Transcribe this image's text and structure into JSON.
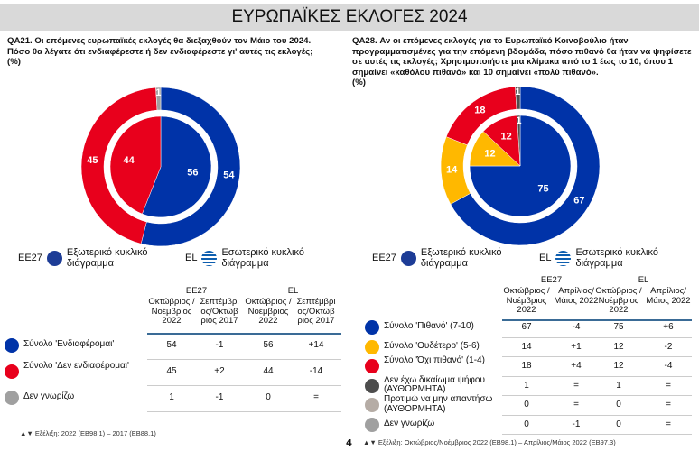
{
  "title": "ΕΥΡΩΠΑΪΚΕΣ ΕΚΛΟΓΕΣ 2024",
  "page_number": "4",
  "legend": {
    "ee27": "EE27",
    "ee27_text": "Εξωτερικό κυκλικό διάγραμμα",
    "el": "EL",
    "el_text": "Εσωτερικό κυκλικό διάγραμμα"
  },
  "left": {
    "question": "QA21. Οι επόμενες ευρωπαϊκές εκλογές θα διεξαχθούν τον Μάιο του 2024. Πόσο θα λέγατε ότι ενδιαφέρεστε ή δεν ενδιαφέρεστε γι' αυτές τις εκλογές;",
    "unit": "(%)",
    "headers": {
      "ee27": "EE27",
      "el": "EL",
      "c1": "Οκτώβριος /Νοέμβριος 2022",
      "c2": "Σεπτέμβρι ος/Οκτώβ ριος 2017"
    },
    "rows": [
      {
        "label": "Σύνολο 'Ενδιαφέρομαι'",
        "color": "#0033a8",
        "ee27": "54",
        "ee27_diff": "-1",
        "el": "56",
        "el_diff": "+14"
      },
      {
        "label": "Σύνολο 'Δεν ενδιαφέρομαι'",
        "color": "#e8001c",
        "ee27": "45",
        "ee27_diff": "+2",
        "el": "44",
        "el_diff": "-14"
      },
      {
        "label": "Δεν γνωρίζω",
        "color": "#a0a0a0",
        "ee27": "1",
        "ee27_diff": "-1",
        "el": "0",
        "el_diff": "="
      }
    ],
    "note": "▲▼ Εξέλιξη: 2022 (EB98.1) – 2017 (EB88.1)"
  },
  "right": {
    "question": "QA28. Αν οι επόμενες εκλογές για το Ευρωπαϊκό Κοινοβούλιο ήταν προγραμματισμένες για την επόμενη βδομάδα, πόσο πιθανό θα ήταν να ψηφίσετε σε αυτές τις εκλογές; Χρησιμοποιήστε μια κλίμακα από το 1 έως το 10, όπου 1 σημαίνει «καθόλου πιθανό» και 10 σημαίνει «πολύ πιθανό».",
    "unit": "(%)",
    "headers": {
      "ee27": "EE27",
      "el": "EL",
      "c1": "Οκτώβριος /Νοέμβριος 2022",
      "c2": "Απρίλιος/ Μάιος 2022"
    },
    "rows": [
      {
        "label": "Σύνολο 'Πιθανό' (7-10)",
        "color": "#0033a8",
        "ee27": "67",
        "ee27_diff": "-4",
        "el": "75",
        "el_diff": "+6"
      },
      {
        "label": "Σύνολο 'Ουδέτερο' (5-6)",
        "color": "#ffb800",
        "ee27": "14",
        "ee27_diff": "+1",
        "el": "12",
        "el_diff": "-2"
      },
      {
        "label": "Σύνολο 'Όχι πιθανό' (1-4)",
        "color": "#e8001c",
        "ee27": "18",
        "ee27_diff": "+4",
        "el": "12",
        "el_diff": "-4"
      },
      {
        "label": "Δεν έχω δικαίωμα ψήφου (ΑΥΘΟΡΜΗΤΑ)",
        "color": "#4d4d4d",
        "ee27": "1",
        "ee27_diff": "=",
        "el": "1",
        "el_diff": "="
      },
      {
        "label": "Προτιμώ να μην απαντήσω (ΑΥΘΟΡΜΗΤΑ)",
        "color": "#b5aca5",
        "ee27": "0",
        "ee27_diff": "=",
        "el": "0",
        "el_diff": "="
      },
      {
        "label": "Δεν γνωρίζω",
        "color": "#a0a0a0",
        "ee27": "0",
        "ee27_diff": "-1",
        "el": "0",
        "el_diff": "="
      }
    ],
    "note": "▲▼ Εξέλιξη: Οκτώβριος/Νοέμβριος 2022 (EB98.1) – Απρίλιος/Μάιος 2022 (EB97.3)"
  },
  "chart_data": [
    {
      "type": "pie",
      "title": "QA21",
      "series": [
        {
          "name": "EE27",
          "categories": [
            "Σύνολο 'Ενδιαφέρομαι'",
            "Σύνολο 'Δεν ενδιαφέρομαι'",
            "Δεν γνωρίζω"
          ],
          "values": [
            54,
            45,
            1
          ],
          "colors": [
            "#0033a8",
            "#e8001c",
            "#a0a0a0"
          ]
        },
        {
          "name": "EL",
          "categories": [
            "Σύνολο 'Ενδιαφέρομαι'",
            "Σύνολο 'Δεν ενδιαφέρομαι'"
          ],
          "values": [
            56,
            44
          ],
          "colors": [
            "#0033a8",
            "#e8001c"
          ]
        }
      ]
    },
    {
      "type": "pie",
      "title": "QA28",
      "series": [
        {
          "name": "EE27",
          "categories": [
            "Σύνολο 'Πιθανό' (7-10)",
            "Σύνολο 'Ουδέτερο' (5-6)",
            "Σύνολο 'Όχι πιθανό' (1-4)",
            "Δεν έχω δικαίωμα ψήφου (ΑΥΘΟΡΜΗΤΑ)"
          ],
          "values": [
            67,
            14,
            18,
            1
          ],
          "colors": [
            "#0033a8",
            "#ffb800",
            "#e8001c",
            "#4d4d4d"
          ]
        },
        {
          "name": "EL",
          "categories": [
            "Σύνολο 'Πιθανό' (7-10)",
            "Σύνολο 'Ουδέτερο' (5-6)",
            "Σύνολο 'Όχι πιθανό' (1-4)",
            "Δεν έχω δικαίωμα ψήφου (ΑΥΘΟΡΜΗΤΑ)"
          ],
          "values": [
            75,
            12,
            12,
            1
          ],
          "colors": [
            "#0033a8",
            "#ffb800",
            "#e8001c",
            "#4d4d4d"
          ]
        }
      ]
    }
  ]
}
